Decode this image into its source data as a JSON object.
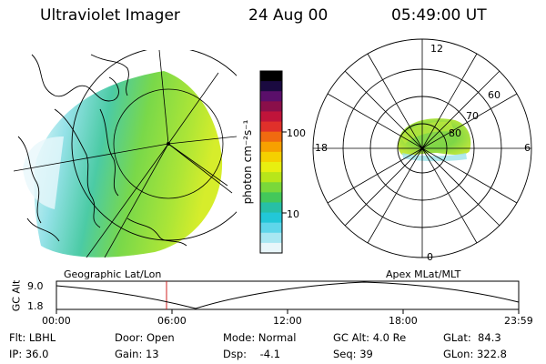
{
  "header": {
    "instrument": "Ultraviolet Imager",
    "date": "24 Aug 00",
    "time": "05:49:00 UT"
  },
  "colorbar": {
    "unit_label": "photon cm⁻²s⁻¹",
    "ticks": [
      "100",
      "10"
    ],
    "colors": [
      "#000000",
      "#1a0a40",
      "#5a0f6a",
      "#8a0f4a",
      "#c0143a",
      "#e0302a",
      "#f06a10",
      "#f7a000",
      "#f5d000",
      "#e8ef10",
      "#b8e61a",
      "#7ad83a",
      "#43c85a",
      "#27bfa6",
      "#22c7d8",
      "#5fd6ea",
      "#a8e7f2",
      "#e8f6fa"
    ]
  },
  "polar": {
    "mlt_labels": {
      "top": "12",
      "left": "18",
      "right": "6",
      "bottom": "0"
    },
    "lat_labels": [
      "60",
      "70",
      "80"
    ]
  },
  "image_labels": {
    "geo": "Geographic Lat/Lon",
    "apex": "Apex MLat/MLT"
  },
  "altplot": {
    "ylabel": "GC Alt",
    "yticks": [
      "9.0",
      "1.8"
    ],
    "xticks": [
      "00:00",
      "06:00",
      "12:00",
      "18:00",
      "23:59"
    ],
    "marker_color": "#d02020"
  },
  "footer": {
    "flt": "Flt: LBHL",
    "ip": "IP: 36.0",
    "door": "Door: Open",
    "gain": "Gain: 13",
    "mode": "Mode: Normal",
    "dsp": "Dsp:    -4.1",
    "gcalt": "GC Alt: 4.0 Re",
    "seq": "Seq: 39",
    "glat": "GLat:  84.3",
    "glon": "GLon: 322.8"
  }
}
